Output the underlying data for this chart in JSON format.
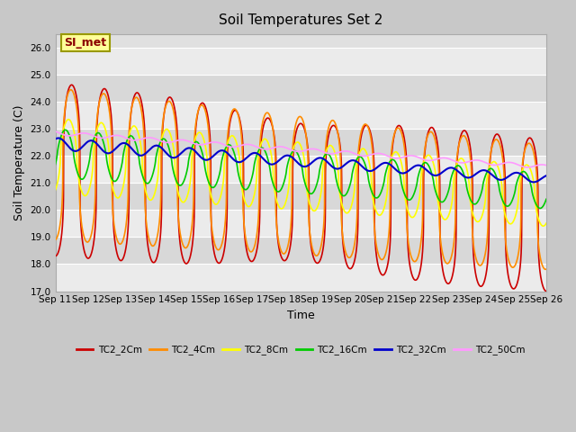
{
  "title": "Soil Temperatures Set 2",
  "xlabel": "Time",
  "ylabel": "Soil Temperature (C)",
  "ylim": [
    17.0,
    26.5
  ],
  "xlim": [
    0,
    360
  ],
  "annotation": "SI_met",
  "series": [
    "TC2_2Cm",
    "TC2_4Cm",
    "TC2_8Cm",
    "TC2_16Cm",
    "TC2_32Cm",
    "TC2_50Cm"
  ],
  "colors": [
    "#cc0000",
    "#ff8c00",
    "#ffff00",
    "#00cc00",
    "#0000cc",
    "#ff99ff"
  ],
  "x_tick_labels": [
    "Sep 11",
    "Sep 12",
    "Sep 13",
    "Sep 14",
    "Sep 15",
    "Sep 16",
    "Sep 17",
    "Sep 18",
    "Sep 19",
    "Sep 20",
    "Sep 21",
    "Sep 22",
    "Sep 23",
    "Sep 24",
    "Sep 25",
    "Sep 26"
  ],
  "x_tick_positions": [
    0,
    24,
    48,
    72,
    96,
    120,
    144,
    168,
    192,
    216,
    240,
    264,
    288,
    312,
    336,
    360
  ],
  "y_ticks": [
    17.0,
    18.0,
    19.0,
    20.0,
    21.0,
    22.0,
    23.0,
    24.0,
    25.0,
    26.0
  ],
  "band_colors": [
    "#ebebeb",
    "#d8d8d8"
  ],
  "figsize": [
    6.4,
    4.8
  ],
  "dpi": 100
}
